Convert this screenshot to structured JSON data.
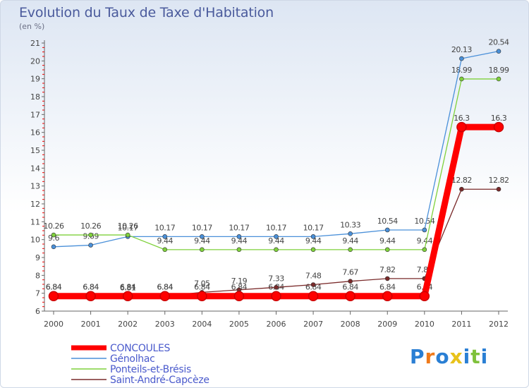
{
  "title": "Evolution du Taux de Taxe d'Habitation",
  "subtitle": "(en %)",
  "logo_text": "Proxiti",
  "chart_data": {
    "type": "line",
    "x": [
      "2000",
      "2001",
      "2002",
      "2003",
      "2004",
      "2005",
      "2006",
      "2007",
      "2008",
      "2009",
      "2010",
      "2011",
      "2012"
    ],
    "ylim": [
      6,
      21
    ],
    "yticks": [
      6,
      7,
      8,
      9,
      10,
      11,
      12,
      13,
      14,
      15,
      16,
      17,
      18,
      19,
      20,
      21
    ],
    "grid": false,
    "legend_position": "bottom-left",
    "series": [
      {
        "name": "CONCOULES",
        "color": "#ff0000",
        "emphasis": true,
        "values": [
          6.84,
          6.84,
          6.84,
          6.84,
          6.84,
          6.84,
          6.84,
          6.84,
          6.84,
          6.84,
          6.84,
          16.3,
          16.3
        ],
        "labels": [
          "6.84",
          "6.84",
          "6.84",
          "6.84",
          "6.84",
          "6.84",
          "6.84",
          "6.84",
          "6.84",
          "6.84",
          "6.84",
          "16.3",
          "16.3"
        ]
      },
      {
        "name": "Génolhac",
        "color": "#4a90d9",
        "values": [
          9.6,
          9.69,
          10.17,
          10.17,
          10.17,
          10.17,
          10.17,
          10.17,
          10.33,
          10.54,
          10.54,
          20.13,
          20.54
        ],
        "labels": [
          "9.6",
          "9.69",
          "10.17",
          "10.17",
          "10.17",
          "10.17",
          "10.17",
          "10.17",
          "10.33",
          "10.54",
          "10.54",
          "20.13",
          "20.54"
        ]
      },
      {
        "name": "Ponteils-et-Brésis",
        "color": "#7fd13b",
        "values": [
          10.26,
          10.26,
          10.26,
          9.44,
          9.44,
          9.44,
          9.44,
          9.44,
          9.44,
          9.44,
          9.44,
          18.99,
          18.99
        ],
        "labels": [
          "10.26",
          "10.26",
          "10.26",
          "9.44",
          "9.44",
          "9.44",
          "9.44",
          "9.44",
          "9.44",
          "9.44",
          "9.44",
          "18.99",
          "18.99"
        ]
      },
      {
        "name": "Saint-André-Capcèze",
        "color": "#7a2a2a",
        "values": [
          6.84,
          6.84,
          6.81,
          6.84,
          7.05,
          7.19,
          7.33,
          7.48,
          7.67,
          7.82,
          7.82,
          12.82,
          12.82
        ],
        "labels": [
          "6.84",
          "6.84",
          "6.81",
          "6.84",
          "7.05",
          "7.19",
          "7.33",
          "7.48",
          "7.67",
          "7.82",
          "7.82",
          "12.82",
          "12.82"
        ]
      }
    ]
  },
  "colors": {
    "title": "#4a5a9c",
    "legend_text": "#4a5acc",
    "axis": "#555555"
  }
}
